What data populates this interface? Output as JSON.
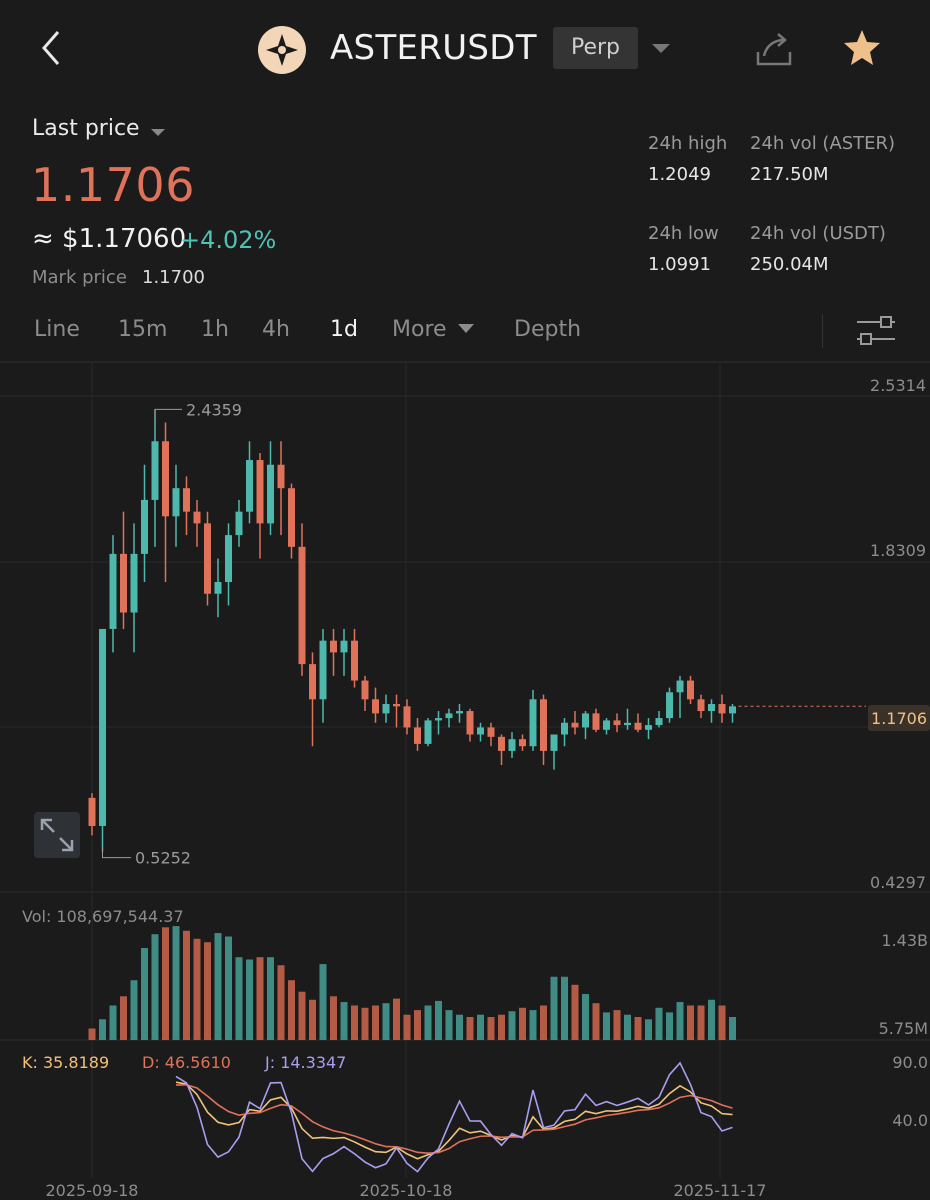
{
  "header": {
    "symbol": "ASTERUSDT",
    "contract_type": "Perp",
    "icons": [
      "back-chevron-icon",
      "aster-logo-icon",
      "dropdown-caret-icon",
      "share-icon",
      "star-icon"
    ],
    "star_color": "#f0c08a"
  },
  "price": {
    "label": "Last price",
    "last": "1.1706",
    "usd": "≈ $1.17060",
    "change": "+4.02%",
    "mark_label": "Mark price",
    "mark_value": "1.1700"
  },
  "stats": {
    "high_label": "24h high",
    "high": "1.2049",
    "low_label": "24h low",
    "low": "1.0991",
    "vol_aster_label": "24h vol (ASTER)",
    "vol_aster": "217.50M",
    "vol_usdt_label": "24h vol (USDT)",
    "vol_usdt": "250.04M"
  },
  "tabs": [
    "Line",
    "15m",
    "1h",
    "4h",
    "1d",
    "More",
    "Depth"
  ],
  "active_tab": "1d",
  "colors": {
    "up": "#4fb8ad",
    "down": "#e0725a",
    "k": "#f0c27a",
    "d": "#e0725a",
    "j": "#a99ef0",
    "bg": "#1b1b1b"
  },
  "chart_data": {
    "type": "candlestick",
    "price_axis": [
      "2.5314",
      "1.8309",
      "0.4297"
    ],
    "current_price_tag": "1.1706",
    "max_label": "2.4359",
    "min_label": "0.5252",
    "x_dates": [
      "2025-09-18",
      "2025-10-18",
      "2025-11-17"
    ],
    "ylim": [
      0.4297,
      2.5314
    ],
    "candles": [
      [
        0.78,
        0.8,
        0.62,
        0.66
      ],
      [
        0.66,
        1.5,
        0.55,
        1.5
      ],
      [
        1.5,
        1.9,
        1.4,
        1.82
      ],
      [
        1.82,
        2.0,
        1.5,
        1.57
      ],
      [
        1.57,
        1.95,
        1.4,
        1.82
      ],
      [
        1.82,
        2.2,
        1.7,
        2.05
      ],
      [
        2.05,
        2.4359,
        1.85,
        2.3
      ],
      [
        2.3,
        2.38,
        1.7,
        1.98
      ],
      [
        1.98,
        2.2,
        1.85,
        2.1
      ],
      [
        2.1,
        2.15,
        1.9,
        2.0
      ],
      [
        2.0,
        2.05,
        1.85,
        1.95
      ],
      [
        1.95,
        2.0,
        1.6,
        1.65
      ],
      [
        1.65,
        1.8,
        1.55,
        1.7
      ],
      [
        1.7,
        1.95,
        1.6,
        1.9
      ],
      [
        1.9,
        2.05,
        1.85,
        2.0
      ],
      [
        2.0,
        2.3,
        1.95,
        2.22
      ],
      [
        2.22,
        2.25,
        1.8,
        1.95
      ],
      [
        1.95,
        2.3,
        1.9,
        2.2
      ],
      [
        2.2,
        2.3,
        1.9,
        2.1
      ],
      [
        2.1,
        2.12,
        1.8,
        1.85
      ],
      [
        1.85,
        1.95,
        1.3,
        1.35
      ],
      [
        1.35,
        1.4,
        1.0,
        1.2
      ],
      [
        1.2,
        1.5,
        1.1,
        1.45
      ],
      [
        1.45,
        1.5,
        1.3,
        1.4
      ],
      [
        1.4,
        1.5,
        1.3,
        1.45
      ],
      [
        1.45,
        1.5,
        1.25,
        1.28
      ],
      [
        1.28,
        1.3,
        1.15,
        1.2
      ],
      [
        1.2,
        1.25,
        1.1,
        1.14
      ],
      [
        1.14,
        1.22,
        1.1,
        1.18
      ],
      [
        1.18,
        1.22,
        1.08,
        1.17
      ],
      [
        1.17,
        1.2,
        1.05,
        1.08
      ],
      [
        1.08,
        1.12,
        0.98,
        1.01
      ],
      [
        1.01,
        1.12,
        1.0,
        1.11
      ],
      [
        1.11,
        1.15,
        1.05,
        1.12
      ],
      [
        1.12,
        1.16,
        1.08,
        1.14
      ],
      [
        1.14,
        1.18,
        1.1,
        1.15
      ],
      [
        1.15,
        1.16,
        1.02,
        1.05
      ],
      [
        1.05,
        1.1,
        1.02,
        1.08
      ],
      [
        1.08,
        1.1,
        1.0,
        1.04
      ],
      [
        1.04,
        1.05,
        0.92,
        0.98
      ],
      [
        0.98,
        1.06,
        0.95,
        1.03
      ],
      [
        1.03,
        1.05,
        0.98,
        1.0
      ],
      [
        1.0,
        1.24,
        0.98,
        1.2
      ],
      [
        1.2,
        1.22,
        0.92,
        0.98
      ],
      [
        0.98,
        1.05,
        0.9,
        1.05
      ],
      [
        1.05,
        1.12,
        1.0,
        1.1
      ],
      [
        1.1,
        1.15,
        1.05,
        1.08
      ],
      [
        1.08,
        1.15,
        1.03,
        1.14
      ],
      [
        1.14,
        1.16,
        1.06,
        1.07
      ],
      [
        1.07,
        1.12,
        1.05,
        1.11
      ],
      [
        1.11,
        1.14,
        1.06,
        1.09
      ],
      [
        1.09,
        1.16,
        1.07,
        1.1
      ],
      [
        1.1,
        1.14,
        1.06,
        1.07
      ],
      [
        1.07,
        1.12,
        1.03,
        1.09
      ],
      [
        1.09,
        1.15,
        1.08,
        1.12
      ],
      [
        1.12,
        1.25,
        1.1,
        1.23
      ],
      [
        1.23,
        1.3,
        1.12,
        1.28
      ],
      [
        1.28,
        1.3,
        1.18,
        1.2
      ],
      [
        1.2,
        1.22,
        1.12,
        1.15
      ],
      [
        1.15,
        1.2,
        1.1,
        1.18
      ],
      [
        1.18,
        1.22,
        1.1,
        1.14
      ],
      [
        1.14,
        1.18,
        1.1,
        1.17
      ]
    ],
    "volume": {
      "label": "Vol: 108,697,544.37",
      "axis": [
        "1.43B",
        "5.75M"
      ],
      "max": 1430000000,
      "values": [
        0.1,
        0.18,
        0.3,
        0.38,
        0.52,
        0.8,
        0.92,
        0.98,
        0.99,
        0.95,
        0.88,
        0.85,
        0.93,
        0.9,
        0.72,
        0.7,
        0.72,
        0.72,
        0.65,
        0.52,
        0.42,
        0.35,
        0.66,
        0.38,
        0.33,
        0.3,
        0.28,
        0.3,
        0.32,
        0.36,
        0.22,
        0.26,
        0.3,
        0.34,
        0.26,
        0.22,
        0.2,
        0.22,
        0.2,
        0.22,
        0.25,
        0.28,
        0.26,
        0.3,
        0.55,
        0.55,
        0.48,
        0.4,
        0.32,
        0.24,
        0.26,
        0.22,
        0.2,
        0.18,
        0.28,
        0.24,
        0.33,
        0.3,
        0.3,
        0.35,
        0.3,
        0.2
      ]
    },
    "kdj": {
      "k_label": "K: 35.8189",
      "d_label": "D: 46.5610",
      "j_label": "J: 14.3347",
      "axis": [
        "90.0",
        "40.0"
      ],
      "range": [
        0,
        100
      ]
    }
  }
}
